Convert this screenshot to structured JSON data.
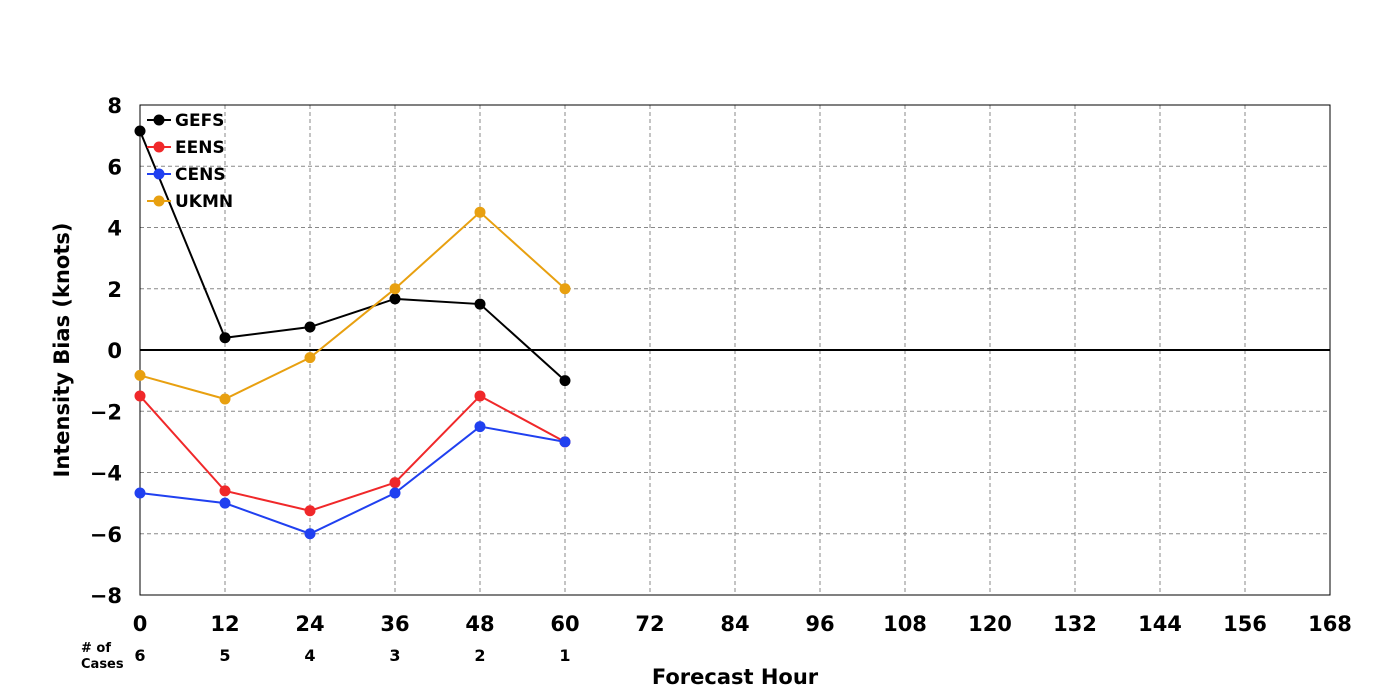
{
  "chart_data": {
    "type": "line",
    "xlabel": "Forecast Hour",
    "ylabel": "Intensity Bias (knots)",
    "xlim": [
      0,
      168
    ],
    "ylim": [
      -8,
      8
    ],
    "x_ticks": [
      0,
      12,
      24,
      36,
      48,
      60,
      72,
      84,
      96,
      108,
      120,
      132,
      144,
      156,
      168
    ],
    "y_ticks": [
      -8,
      -6,
      -4,
      -2,
      0,
      2,
      4,
      6,
      8
    ],
    "y_tick_labels": [
      "−8",
      "−6",
      "−4",
      "−2",
      "0",
      "2",
      "4",
      "6",
      "8"
    ],
    "grid": true,
    "legend_position": "top-left",
    "x": [
      0,
      12,
      24,
      36,
      48,
      60
    ],
    "series": [
      {
        "name": "GEFS",
        "color": "#000000",
        "values": [
          7.15,
          0.4,
          0.75,
          1.67,
          1.5,
          -1.0
        ]
      },
      {
        "name": "EENS",
        "color": "#f0282a",
        "values": [
          -1.5,
          -4.6,
          -5.25,
          -4.33,
          -1.5,
          -3.0
        ]
      },
      {
        "name": "CENS",
        "color": "#2040f0",
        "values": [
          -4.67,
          -5.0,
          -6.0,
          -4.67,
          -2.5,
          -3.0
        ]
      },
      {
        "name": "UKMN",
        "color": "#e8a010",
        "values": [
          -0.83,
          -1.6,
          -0.25,
          2.0,
          4.5,
          2.0
        ]
      }
    ],
    "cases": {
      "label_line1": "# of",
      "label_line2": "Cases",
      "values": [
        "6",
        "5",
        "4",
        "3",
        "2",
        "1"
      ]
    }
  }
}
